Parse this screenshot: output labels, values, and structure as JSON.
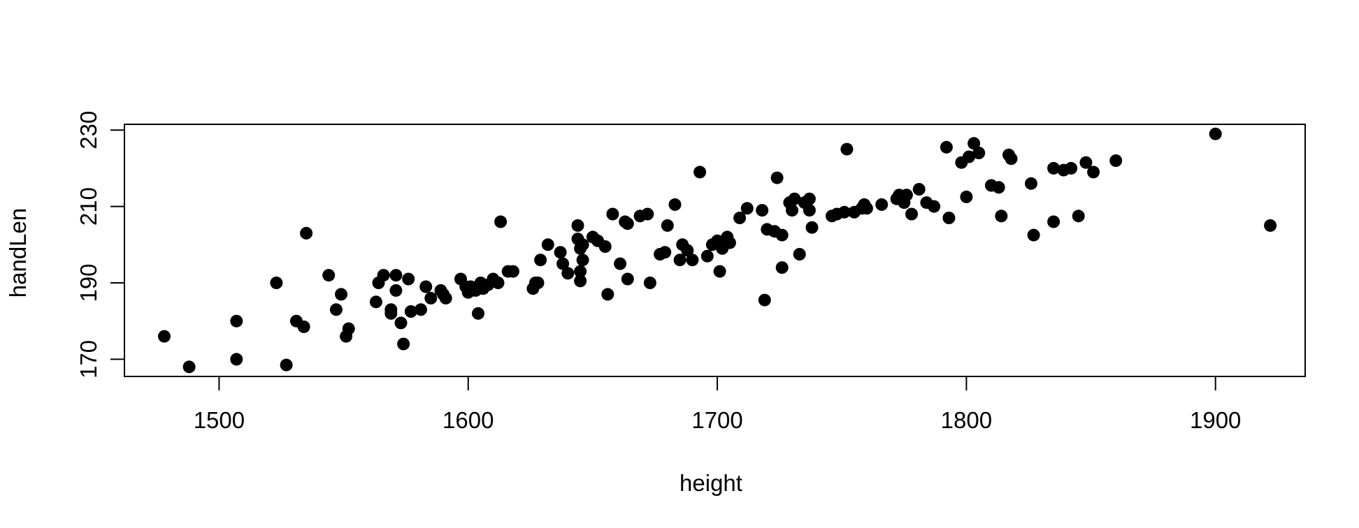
{
  "chart_data": {
    "type": "scatter",
    "title": "",
    "xlabel": "height",
    "ylabel": "handLen",
    "xlim": [
      1462,
      1936
    ],
    "ylim": [
      165.5,
      231.5
    ],
    "x_ticks": [
      1500,
      1600,
      1700,
      1800,
      1900
    ],
    "y_ticks": [
      170,
      190,
      210,
      230
    ],
    "x_tick_labels": [
      "1500",
      "1600",
      "1700",
      "1800",
      "1900"
    ],
    "y_tick_labels": [
      "170",
      "190",
      "210",
      "230"
    ],
    "grid": false,
    "point_color": "#000000",
    "series": [
      {
        "points": [
          [
            1478,
            176
          ],
          [
            1488,
            168
          ],
          [
            1507,
            180
          ],
          [
            1507,
            170
          ],
          [
            1523,
            190
          ],
          [
            1527,
            168.5
          ],
          [
            1531,
            180
          ],
          [
            1534,
            178.5
          ],
          [
            1535,
            203
          ],
          [
            1544,
            192
          ],
          [
            1547,
            183
          ],
          [
            1549,
            187
          ],
          [
            1551,
            176
          ],
          [
            1552,
            178
          ],
          [
            1563,
            185
          ],
          [
            1564,
            190
          ],
          [
            1566,
            192
          ],
          [
            1569,
            182
          ],
          [
            1569,
            183
          ],
          [
            1571,
            192
          ],
          [
            1571,
            188
          ],
          [
            1573,
            179.5
          ],
          [
            1574,
            174
          ],
          [
            1576,
            191
          ],
          [
            1577,
            182.5
          ],
          [
            1581,
            183
          ],
          [
            1583,
            189
          ],
          [
            1585,
            186
          ],
          [
            1589,
            188
          ],
          [
            1590,
            187
          ],
          [
            1591,
            186
          ],
          [
            1597,
            191
          ],
          [
            1599,
            189
          ],
          [
            1600,
            187.5
          ],
          [
            1601,
            189
          ],
          [
            1603,
            188
          ],
          [
            1604,
            182
          ],
          [
            1605,
            190
          ],
          [
            1606,
            188.5
          ],
          [
            1608,
            189.5
          ],
          [
            1610,
            191
          ],
          [
            1612,
            190
          ],
          [
            1613,
            206
          ],
          [
            1616,
            193
          ],
          [
            1618,
            193
          ],
          [
            1626,
            188.5
          ],
          [
            1627,
            190
          ],
          [
            1628,
            190
          ],
          [
            1629,
            196
          ],
          [
            1632,
            200
          ],
          [
            1637,
            198
          ],
          [
            1638,
            195
          ],
          [
            1640,
            192.5
          ],
          [
            1644,
            205
          ],
          [
            1644,
            201.5
          ],
          [
            1645,
            199
          ],
          [
            1645,
            193
          ],
          [
            1645,
            190.5
          ],
          [
            1646,
            196
          ],
          [
            1646,
            200
          ],
          [
            1650,
            202
          ],
          [
            1652,
            201
          ],
          [
            1655,
            199.5
          ],
          [
            1656,
            187
          ],
          [
            1658,
            208
          ],
          [
            1661,
            195
          ],
          [
            1663,
            206
          ],
          [
            1664,
            191
          ],
          [
            1664,
            205.5
          ],
          [
            1669,
            207.5
          ],
          [
            1672,
            208
          ],
          [
            1673,
            190
          ],
          [
            1677,
            197.5
          ],
          [
            1679,
            198
          ],
          [
            1680,
            205
          ],
          [
            1683,
            210.5
          ],
          [
            1685,
            196
          ],
          [
            1686,
            200
          ],
          [
            1688,
            198.5
          ],
          [
            1690,
            196
          ],
          [
            1693,
            219
          ],
          [
            1696,
            197
          ],
          [
            1698,
            200
          ],
          [
            1700,
            201
          ],
          [
            1701,
            193
          ],
          [
            1702,
            199
          ],
          [
            1704,
            202
          ],
          [
            1705,
            200.5
          ],
          [
            1709,
            207
          ],
          [
            1712,
            209.5
          ],
          [
            1718,
            209
          ],
          [
            1719,
            185.5
          ],
          [
            1720,
            204
          ],
          [
            1723,
            203.5
          ],
          [
            1724,
            217.5
          ],
          [
            1726,
            194
          ],
          [
            1726,
            202.5
          ],
          [
            1729,
            211
          ],
          [
            1730,
            209
          ],
          [
            1731,
            212
          ],
          [
            1733,
            197.5
          ],
          [
            1735,
            211
          ],
          [
            1737,
            209
          ],
          [
            1737,
            212
          ],
          [
            1738,
            204.5
          ],
          [
            1746,
            207.5
          ],
          [
            1748,
            208
          ],
          [
            1751,
            208.5
          ],
          [
            1752,
            225
          ],
          [
            1755,
            208.5
          ],
          [
            1758,
            209.5
          ],
          [
            1759,
            210.5
          ],
          [
            1760,
            209.5
          ],
          [
            1766,
            210.5
          ],
          [
            1772,
            212
          ],
          [
            1773,
            213
          ],
          [
            1775,
            211
          ],
          [
            1776,
            213
          ],
          [
            1778,
            208
          ],
          [
            1781,
            214.5
          ],
          [
            1784,
            211
          ],
          [
            1787,
            210
          ],
          [
            1792,
            225.5
          ],
          [
            1793,
            207
          ],
          [
            1798,
            221.5
          ],
          [
            1800,
            212.5
          ],
          [
            1801,
            223
          ],
          [
            1803,
            226.5
          ],
          [
            1805,
            224
          ],
          [
            1810,
            215.5
          ],
          [
            1813,
            215
          ],
          [
            1814,
            207.5
          ],
          [
            1817,
            223.5
          ],
          [
            1818,
            222.5
          ],
          [
            1826,
            216
          ],
          [
            1827,
            202.5
          ],
          [
            1835,
            220
          ],
          [
            1835,
            206
          ],
          [
            1839,
            219.5
          ],
          [
            1842,
            220
          ],
          [
            1845,
            207.5
          ],
          [
            1848,
            221.5
          ],
          [
            1851,
            219
          ],
          [
            1860,
            222
          ],
          [
            1900,
            229
          ],
          [
            1922,
            205
          ]
        ]
      }
    ]
  }
}
